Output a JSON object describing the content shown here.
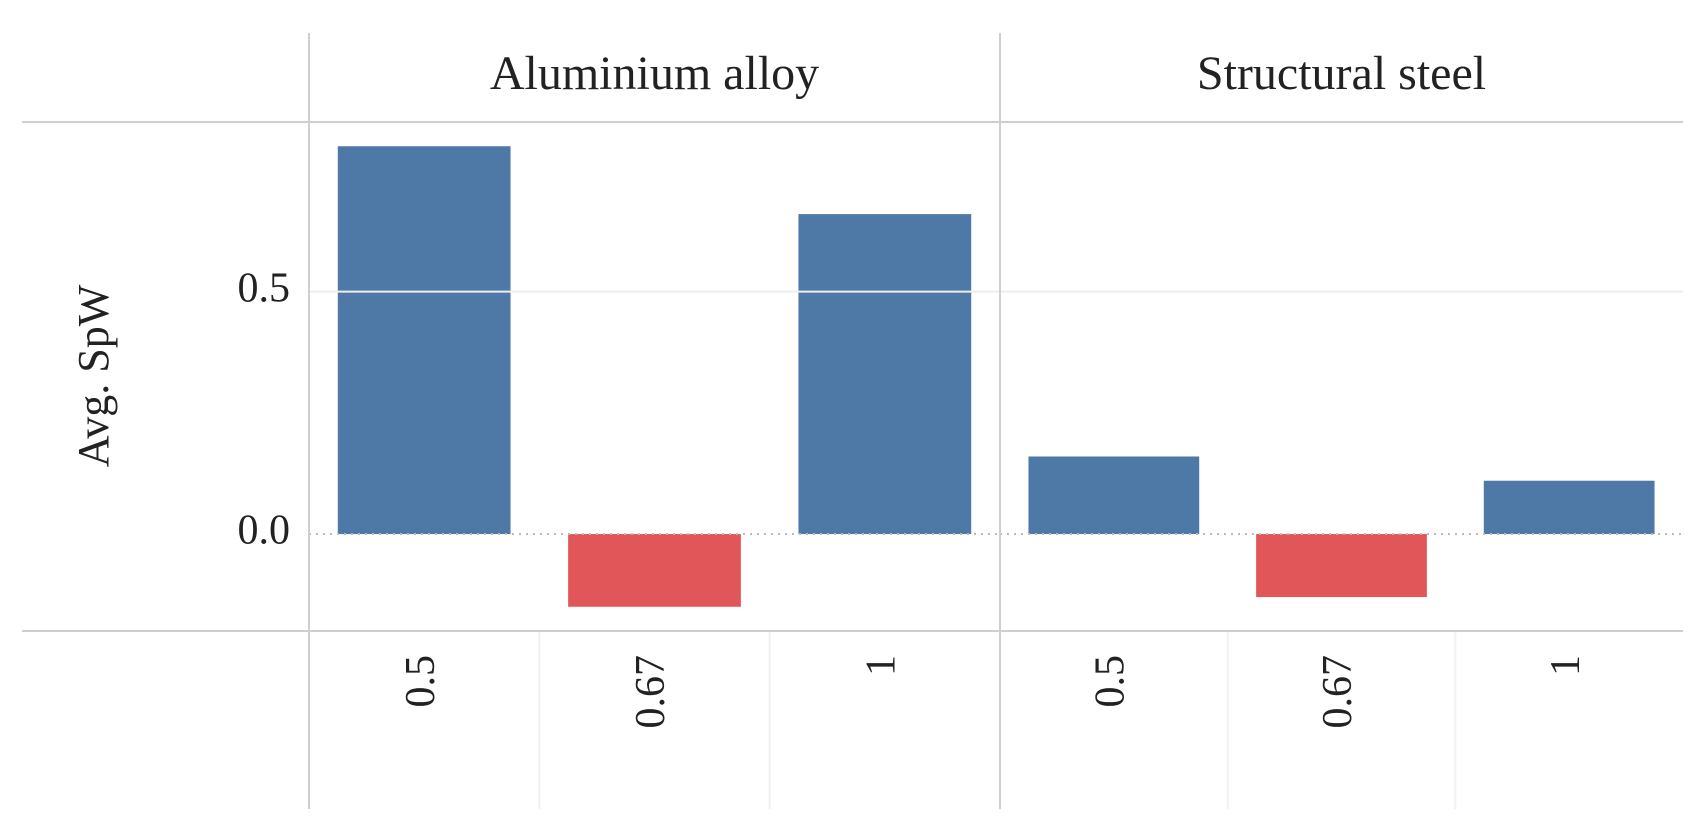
{
  "chart_data": {
    "type": "bar",
    "y_label": "Avg. SpW",
    "facets": [
      {
        "title": "Aluminium alloy",
        "categories": [
          "0.5",
          "0.67",
          "1"
        ],
        "values": [
          0.8,
          -0.15,
          0.66
        ]
      },
      {
        "title": "Structural steel",
        "categories": [
          "0.5",
          "0.67",
          "1"
        ],
        "values": [
          0.16,
          -0.13,
          0.11
        ]
      }
    ],
    "positive_color": "#4e79a7",
    "negative_color": "#e15759",
    "ylim": [
      -0.2,
      0.85
    ],
    "yticks": [
      {
        "value": 0,
        "label": "0.0"
      },
      0.5
    ],
    "grid": true
  }
}
